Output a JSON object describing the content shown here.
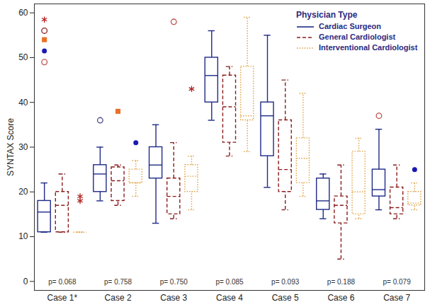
{
  "chart_data": {
    "type": "box",
    "ylabel": "SYNTAX Score",
    "legend_title": "Physician Type",
    "legend": "top-right",
    "categories": [
      "Case 1*",
      "Case 2",
      "Case 3",
      "Case 4",
      "Case 5",
      "Case 6",
      "Case 7"
    ],
    "p_labels": [
      "p= 0.068",
      "p= 0.758",
      "p= 0.750",
      "p= 0.085",
      "p= 0.093",
      "p= 0.188",
      "p= 0.079"
    ],
    "ylim": [
      -2,
      62
    ],
    "yticks": [
      0,
      10,
      20,
      30,
      40,
      50,
      60
    ],
    "series": [
      {
        "name": "Cardiac Surgeon",
        "color": "#1f2a86",
        "line_style": "solid",
        "boxes": [
          {
            "low": 11,
            "q1": 11,
            "median": 15.5,
            "q3": 18,
            "high": 22
          },
          {
            "low": 18,
            "q1": 20,
            "median": 24,
            "q3": 26,
            "high": 30
          },
          {
            "low": 13,
            "q1": 23,
            "median": 26,
            "q3": 30,
            "high": 35
          },
          {
            "low": 36,
            "q1": 40,
            "median": 46,
            "q3": 50,
            "high": 56
          },
          {
            "low": 21,
            "q1": 28,
            "median": 37,
            "q3": 40,
            "high": 55
          },
          {
            "low": 14,
            "q1": 16,
            "median": 18,
            "q3": 23,
            "high": 24
          },
          {
            "low": 16,
            "q1": 19,
            "median": 20.5,
            "q3": 25,
            "high": 34
          }
        ],
        "outliers": [
          [
            {
              "value": 58.5,
              "marker": "asterisk",
              "color": "#b22222"
            },
            {
              "value": 56,
              "marker": "open circle",
              "color": "#8b1c1c"
            },
            {
              "value": 54,
              "marker": "filled square",
              "color": "#e8702a"
            },
            {
              "value": 51.5,
              "marker": "filled circle",
              "color": "#1a1ab0"
            },
            {
              "value": 49,
              "marker": "open circle",
              "color": "#c0504d"
            }
          ],
          [
            {
              "value": 36,
              "marker": "open circle",
              "color": "#4a4a8a"
            }
          ],
          [],
          [],
          [],
          [],
          [
            {
              "value": 37,
              "marker": "open circle",
              "color": "#c0504d"
            }
          ]
        ]
      },
      {
        "name": "General Cardiologist",
        "color": "#8b1c1c",
        "line_style": "dashed",
        "boxes": [
          {
            "low": 11,
            "q1": 11,
            "median": 17,
            "q3": 20,
            "high": 24
          },
          {
            "low": 17,
            "q1": 18,
            "median": 22.5,
            "q3": 25.5,
            "high": 26
          },
          {
            "low": 14,
            "q1": 15,
            "median": 19,
            "q3": 23,
            "high": 31
          },
          {
            "low": 28,
            "q1": 31,
            "median": 39,
            "q3": 46,
            "high": 48
          },
          {
            "low": 16,
            "q1": 20,
            "median": 25,
            "q3": 36,
            "high": 45
          },
          {
            "low": 5,
            "q1": 13,
            "median": 17,
            "q3": 19,
            "high": 26
          },
          {
            "low": 14,
            "q1": 15,
            "median": 16.5,
            "q3": 21,
            "high": 26
          }
        ],
        "outliers": [
          [],
          [
            {
              "value": 38,
              "marker": "filled square",
              "color": "#e8702a"
            }
          ],
          [
            {
              "value": 58,
              "marker": "open circle",
              "color": "#c0504d"
            }
          ],
          [],
          [],
          [],
          []
        ]
      },
      {
        "name": "Interventional Cardiologist",
        "color": "#e0a040",
        "line_style": "dotted",
        "boxes": [
          {
            "low": 11,
            "q1": 11,
            "median": 11,
            "q3": 11,
            "high": 11
          },
          {
            "low": 19,
            "q1": 22,
            "median": 22,
            "q3": 25,
            "high": 27
          },
          {
            "low": 16,
            "q1": 20,
            "median": 23.5,
            "q3": 26,
            "high": 28
          },
          {
            "low": 29,
            "q1": 36,
            "median": 37,
            "q3": 48,
            "high": 59
          },
          {
            "low": 19,
            "q1": 22,
            "median": 27.5,
            "q3": 32,
            "high": 42
          },
          {
            "low": 14,
            "q1": 15,
            "median": 20,
            "q3": 29,
            "high": 32
          },
          {
            "low": 16,
            "q1": 17,
            "median": 17.5,
            "q3": 20,
            "high": 22
          }
        ],
        "outliers": [
          [
            {
              "value": 19,
              "marker": "asterisk",
              "color": "#b22222"
            },
            {
              "value": 18,
              "marker": "asterisk",
              "color": "#b22222"
            }
          ],
          [
            {
              "value": 31,
              "marker": "filled circle",
              "color": "#1a1ab0"
            }
          ],
          [
            {
              "value": 43,
              "marker": "asterisk",
              "color": "#b22222"
            }
          ],
          [],
          [],
          [],
          [
            {
              "value": 25,
              "marker": "filled circle",
              "color": "#1a1ab0"
            }
          ]
        ]
      }
    ]
  }
}
